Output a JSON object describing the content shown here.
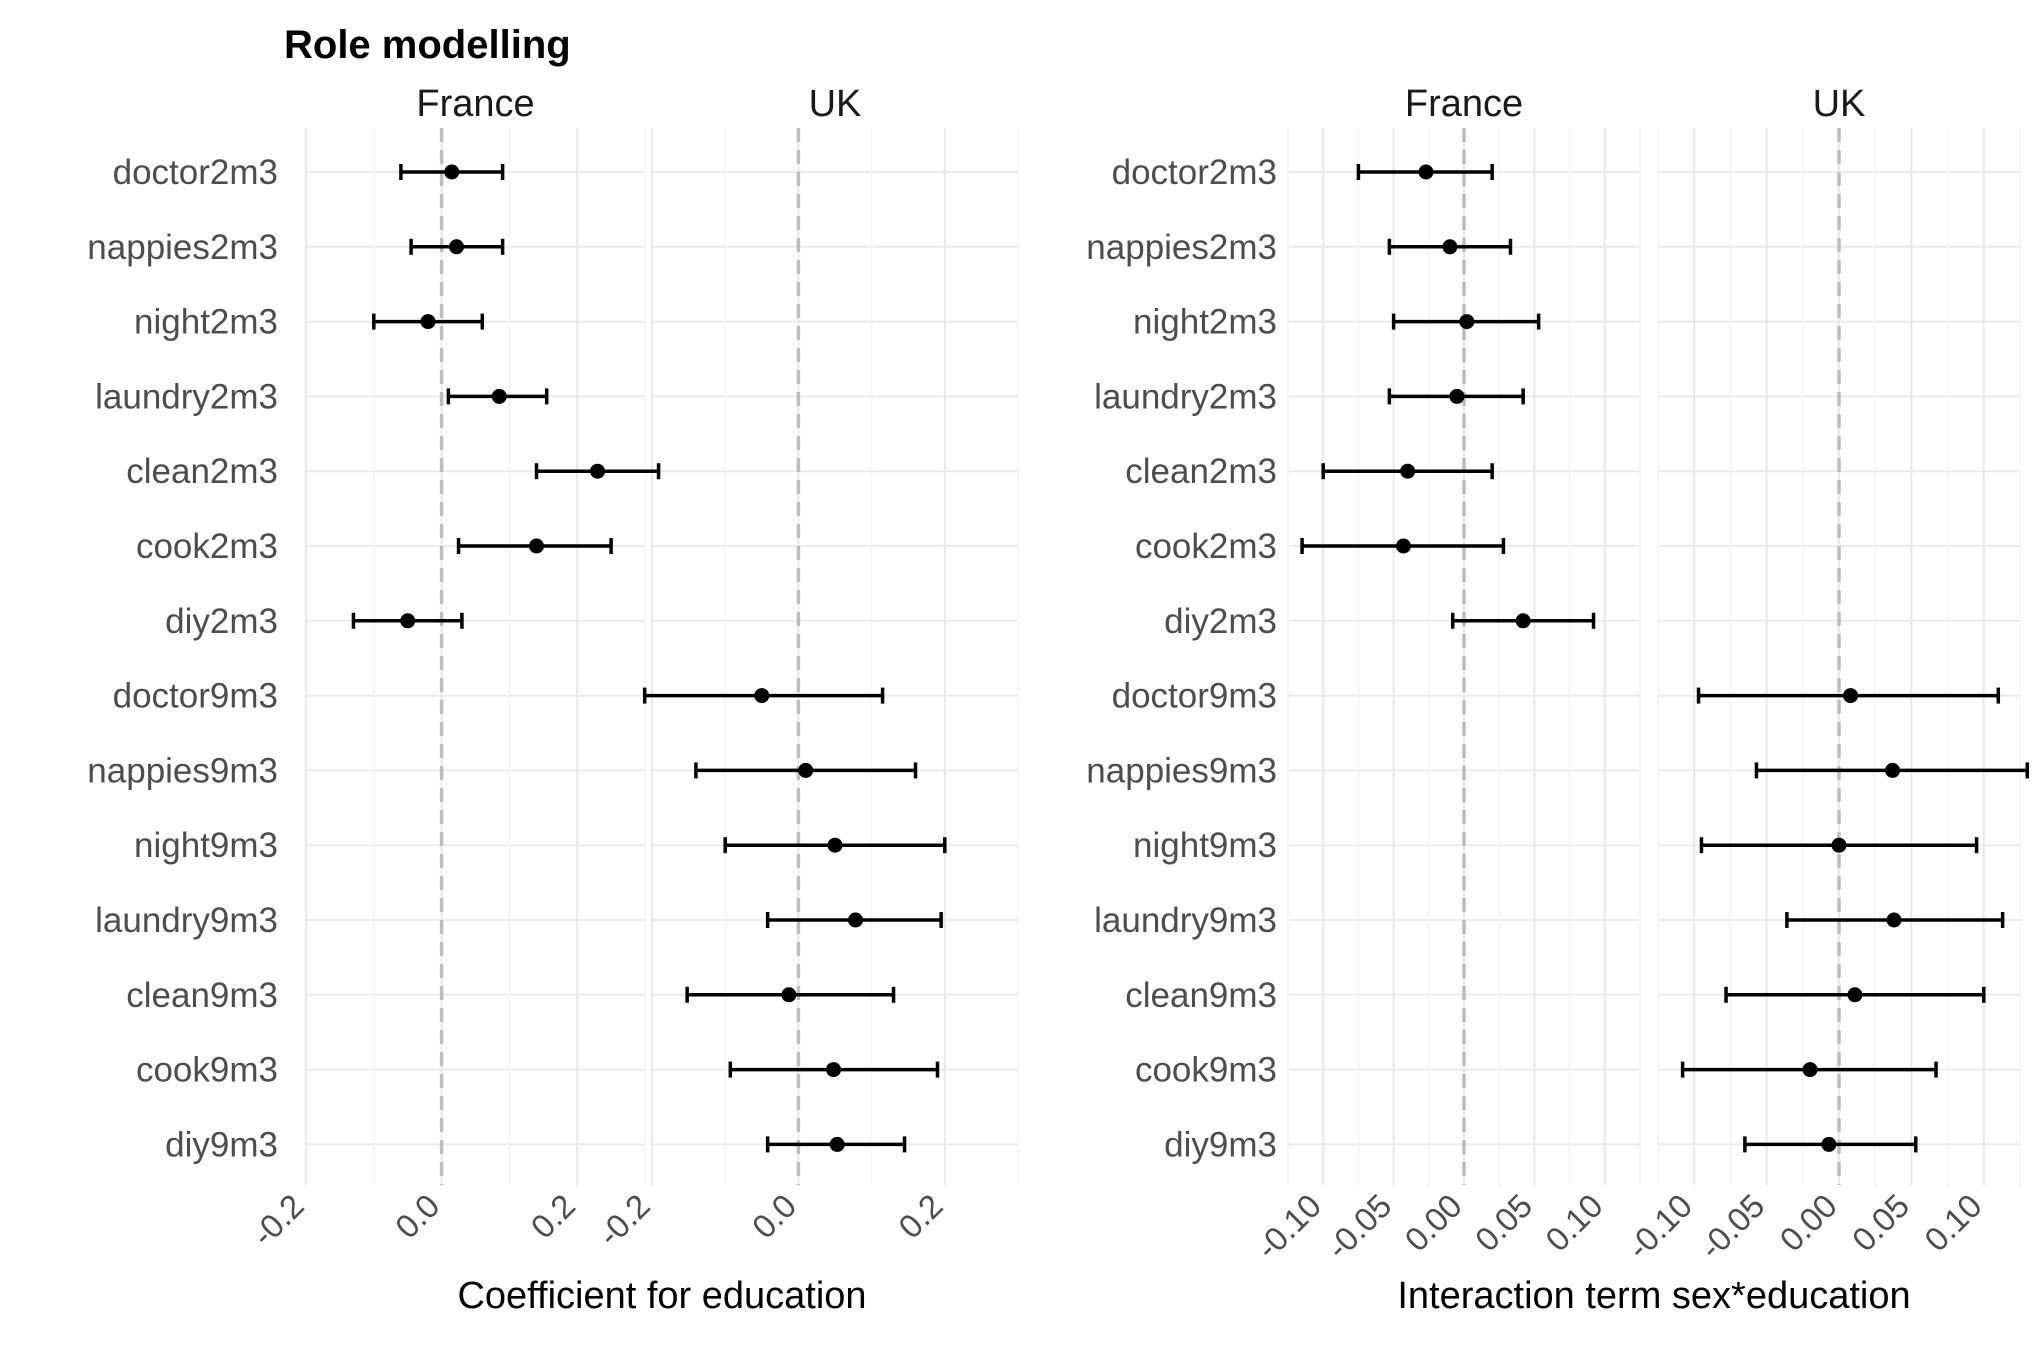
{
  "title": "Role modelling",
  "chart_data": [
    {
      "type": "errorbar",
      "xlabel": "Coefficient for education",
      "ylabel": "",
      "xlim": [
        -0.2,
        0.3
      ],
      "xticks": [
        -0.2,
        0.0,
        0.2
      ],
      "tick_labels": [
        "-0.2",
        "0.0",
        "0.2"
      ],
      "reference_line": 0,
      "categories": [
        "doctor2m3",
        "nappies2m3",
        "night2m3",
        "laundry2m3",
        "clean2m3",
        "cook2m3",
        "diy2m3",
        "doctor9m3",
        "nappies9m3",
        "night9m3",
        "laundry9m3",
        "clean9m3",
        "cook9m3",
        "diy9m3"
      ],
      "facets": [
        {
          "name": "France",
          "points": [
            {
              "category": "doctor2m3",
              "estimate": 0.015,
              "lower": -0.06,
              "upper": 0.09
            },
            {
              "category": "nappies2m3",
              "estimate": 0.022,
              "lower": -0.045,
              "upper": 0.09
            },
            {
              "category": "night2m3",
              "estimate": -0.02,
              "lower": -0.1,
              "upper": 0.06
            },
            {
              "category": "laundry2m3",
              "estimate": 0.085,
              "lower": 0.01,
              "upper": 0.155
            },
            {
              "category": "clean2m3",
              "estimate": 0.23,
              "lower": 0.14,
              "upper": 0.32
            },
            {
              "category": "cook2m3",
              "estimate": 0.14,
              "lower": 0.025,
              "upper": 0.25
            },
            {
              "category": "diy2m3",
              "estimate": -0.05,
              "lower": -0.13,
              "upper": 0.03
            }
          ]
        },
        {
          "name": "UK",
          "points": [
            {
              "category": "doctor9m3",
              "estimate": -0.05,
              "lower": -0.21,
              "upper": 0.115
            },
            {
              "category": "nappies9m3",
              "estimate": 0.01,
              "lower": -0.14,
              "upper": 0.16
            },
            {
              "category": "night9m3",
              "estimate": 0.05,
              "lower": -0.1,
              "upper": 0.2
            },
            {
              "category": "laundry9m3",
              "estimate": 0.078,
              "lower": -0.042,
              "upper": 0.195
            },
            {
              "category": "clean9m3",
              "estimate": -0.013,
              "lower": -0.152,
              "upper": 0.13
            },
            {
              "category": "cook9m3",
              "estimate": 0.048,
              "lower": -0.093,
              "upper": 0.19
            },
            {
              "category": "diy9m3",
              "estimate": 0.053,
              "lower": -0.042,
              "upper": 0.145
            }
          ]
        }
      ]
    },
    {
      "type": "errorbar",
      "xlabel": "Interaction term sex*education",
      "ylabel": "",
      "xlim": [
        -0.125,
        0.125
      ],
      "xticks": [
        -0.1,
        -0.05,
        0.0,
        0.05,
        0.1
      ],
      "tick_labels": [
        "-0.10",
        "-0.05",
        "0.00",
        "0.05",
        "0.10"
      ],
      "reference_line": 0,
      "categories": [
        "doctor2m3",
        "nappies2m3",
        "night2m3",
        "laundry2m3",
        "clean2m3",
        "cook2m3",
        "diy2m3",
        "doctor9m3",
        "nappies9m3",
        "night9m3",
        "laundry9m3",
        "clean9m3",
        "cook9m3",
        "diy9m3"
      ],
      "facets": [
        {
          "name": "France",
          "points": [
            {
              "category": "doctor2m3",
              "estimate": -0.027,
              "lower": -0.075,
              "upper": 0.02
            },
            {
              "category": "nappies2m3",
              "estimate": -0.01,
              "lower": -0.053,
              "upper": 0.033
            },
            {
              "category": "night2m3",
              "estimate": 0.002,
              "lower": -0.05,
              "upper": 0.053
            },
            {
              "category": "laundry2m3",
              "estimate": -0.005,
              "lower": -0.053,
              "upper": 0.042
            },
            {
              "category": "clean2m3",
              "estimate": -0.04,
              "lower": -0.1,
              "upper": 0.02
            },
            {
              "category": "cook2m3",
              "estimate": -0.043,
              "lower": -0.115,
              "upper": 0.028
            },
            {
              "category": "diy2m3",
              "estimate": 0.042,
              "lower": -0.008,
              "upper": 0.092
            }
          ]
        },
        {
          "name": "UK",
          "points": [
            {
              "category": "doctor9m3",
              "estimate": 0.008,
              "lower": -0.097,
              "upper": 0.11
            },
            {
              "category": "nappies9m3",
              "estimate": 0.037,
              "lower": -0.057,
              "upper": 0.13
            },
            {
              "category": "night9m3",
              "estimate": 0.0,
              "lower": -0.095,
              "upper": 0.095
            },
            {
              "category": "laundry9m3",
              "estimate": 0.038,
              "lower": -0.036,
              "upper": 0.113
            },
            {
              "category": "clean9m3",
              "estimate": 0.011,
              "lower": -0.078,
              "upper": 0.1
            },
            {
              "category": "cook9m3",
              "estimate": -0.02,
              "lower": -0.108,
              "upper": 0.067
            },
            {
              "category": "diy9m3",
              "estimate": -0.007,
              "lower": -0.065,
              "upper": 0.053
            }
          ]
        }
      ]
    }
  ]
}
